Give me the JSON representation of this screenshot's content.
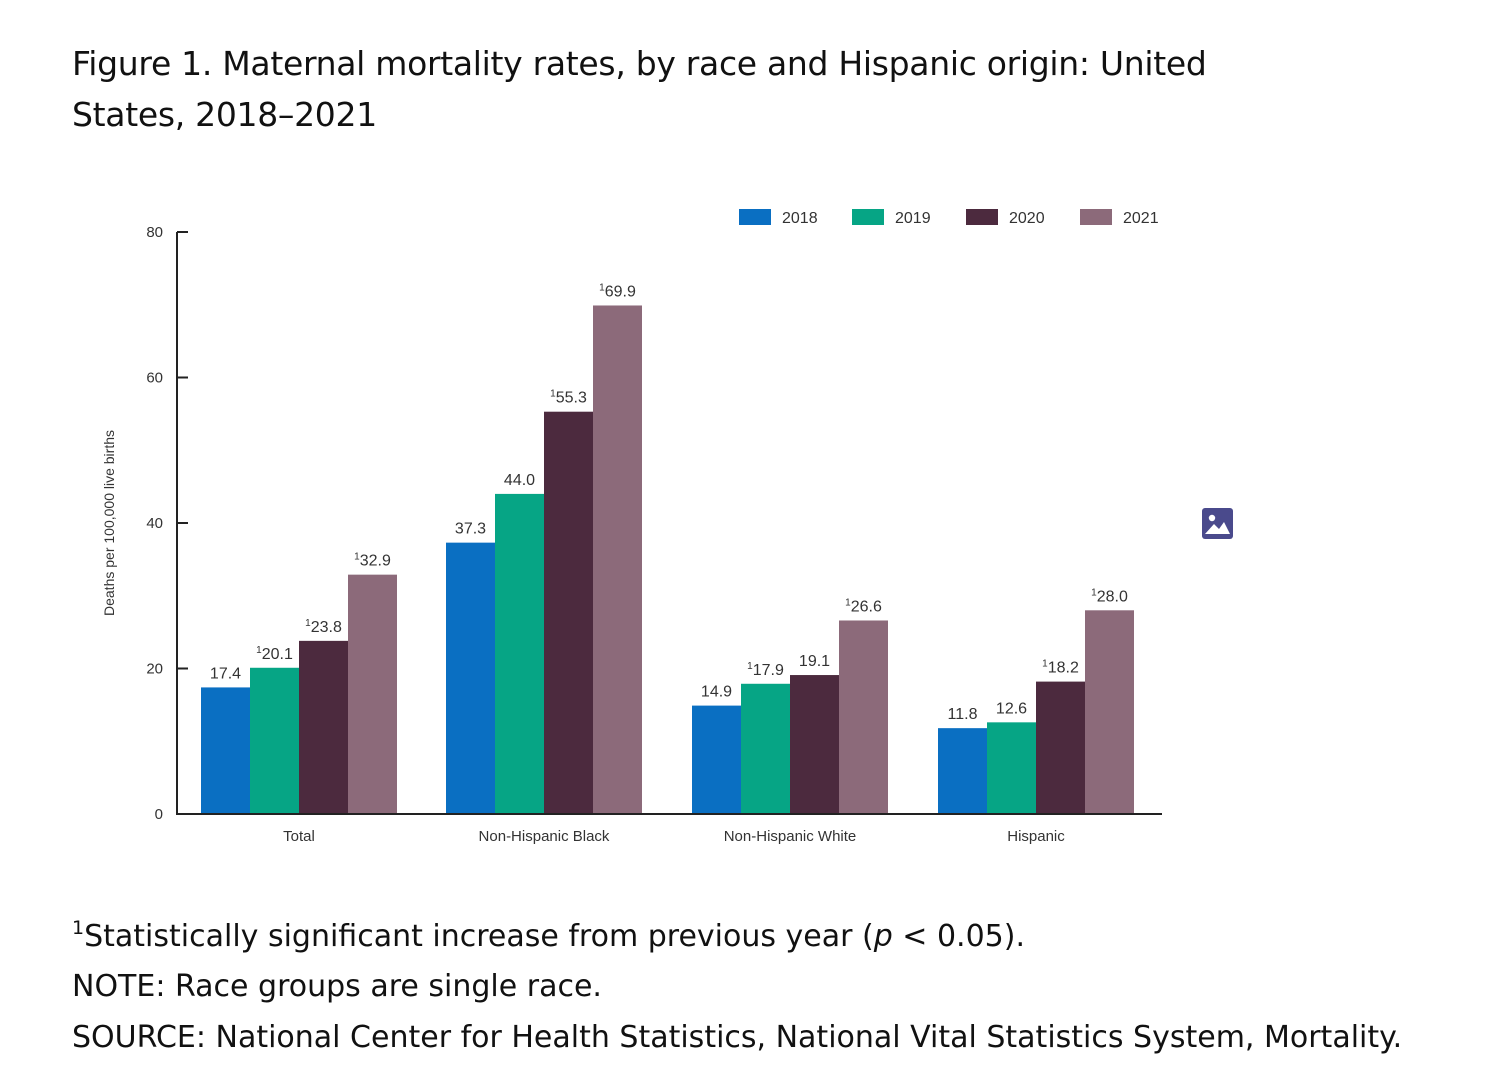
{
  "title": "Figure 1. Maternal mortality rates, by race and Hispanic origin: United States, 2018–2021",
  "footnote": {
    "marker": "1",
    "text_before": "Statistically significant increase from previous year (",
    "italic": "p",
    "text_after": " < 0.05)."
  },
  "note": "NOTE: Race groups are single race.",
  "source": "SOURCE: National Center for Health Statistics, National Vital Statistics System, Mortality.",
  "icons": {
    "image": "image-icon"
  },
  "colors": {
    "2018": "#0a6fc2",
    "2019": "#06a585",
    "2020": "#4c2a3e",
    "2021": "#8c6a7a"
  },
  "chart_data": {
    "type": "bar",
    "title": "",
    "xlabel": "",
    "ylabel": "Deaths per 100,000 live births",
    "ylim": [
      0,
      80
    ],
    "yticks": [
      0,
      20,
      40,
      60,
      80
    ],
    "categories": [
      "Total",
      "Non-Hispanic Black",
      "Non-Hispanic White",
      "Hispanic"
    ],
    "legend_position": "top-right",
    "grid": false,
    "series": [
      {
        "name": "2018",
        "values": [
          17.4,
          37.3,
          14.9,
          11.8
        ],
        "labels": [
          "17.4",
          "37.3",
          "14.9",
          "11.8"
        ],
        "significant": [
          false,
          false,
          false,
          false
        ]
      },
      {
        "name": "2019",
        "values": [
          20.1,
          44.0,
          17.9,
          12.6
        ],
        "labels": [
          "20.1",
          "44.0",
          "17.9",
          "12.6"
        ],
        "significant": [
          true,
          false,
          true,
          false
        ]
      },
      {
        "name": "2020",
        "values": [
          23.8,
          55.3,
          19.1,
          18.2
        ],
        "labels": [
          "23.8",
          "55.3",
          "19.1",
          "18.2"
        ],
        "significant": [
          true,
          true,
          false,
          true
        ]
      },
      {
        "name": "2021",
        "values": [
          32.9,
          69.9,
          26.6,
          28.0
        ],
        "labels": [
          "32.9",
          "69.9",
          "26.6",
          "28.0"
        ],
        "significant": [
          true,
          true,
          true,
          true
        ]
      }
    ]
  }
}
